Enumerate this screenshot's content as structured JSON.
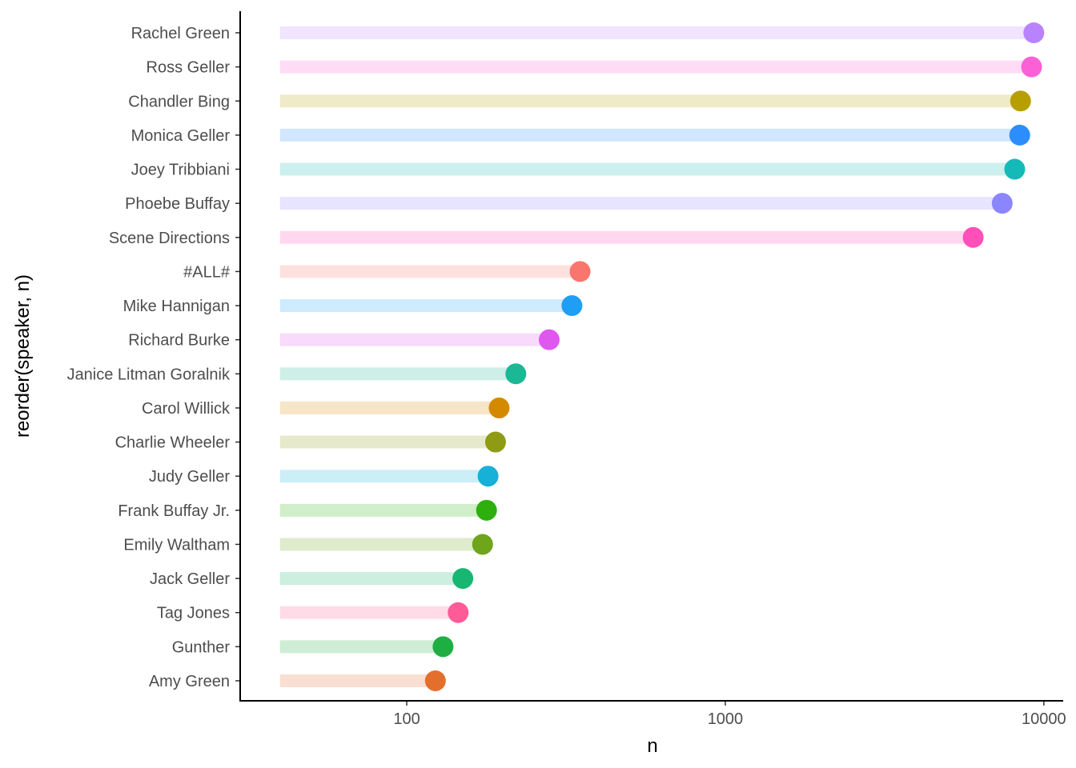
{
  "chart_data": {
    "type": "lollipop",
    "xlabel": "n",
    "ylabel": "reorder(speaker, n)",
    "x_scale": "log10",
    "xlim": [
      30,
      11500
    ],
    "x_ticks": [
      100,
      1000,
      10000
    ],
    "x_tick_labels": [
      "100",
      "1000",
      "10000"
    ],
    "segment_start": 40,
    "grid": false,
    "legend": "none",
    "categories": [
      "Rachel Green",
      "Ross Geller",
      "Chandler Bing",
      "Monica Geller",
      "Joey Tribbiani",
      "Phoebe Buffay",
      "Scene Directions",
      "#ALL#",
      "Mike Hannigan",
      "Richard Burke",
      "Janice Litman Goralnik",
      "Carol Willick",
      "Charlie Wheeler",
      "Judy Geller",
      "Frank Buffay Jr.",
      "Emily Waltham",
      "Jack Geller",
      "Tag Jones",
      "Gunther",
      "Amy Green"
    ],
    "values": [
      9300,
      9150,
      8450,
      8400,
      8100,
      7400,
      6000,
      350,
      330,
      280,
      220,
      195,
      190,
      180,
      178,
      173,
      150,
      145,
      130,
      123
    ],
    "colors": [
      "#B983FF",
      "#FB61D7",
      "#B79F00",
      "#2C8DFF",
      "#15B9B7",
      "#8B85FF",
      "#FF4FB8",
      "#F8766D",
      "#1E9EF5",
      "#E057F0",
      "#1BB896",
      "#D48A00",
      "#8F9B12",
      "#17B0D6",
      "#2DB00E",
      "#6EA51A",
      "#17B772",
      "#FF5C97",
      "#1FAE42",
      "#E46F2C"
    ]
  }
}
